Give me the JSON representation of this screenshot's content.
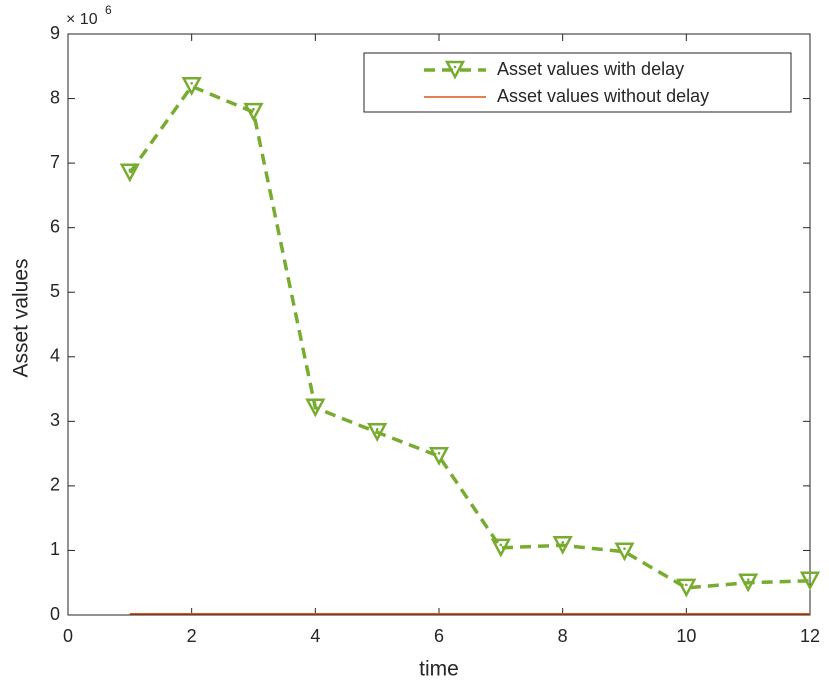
{
  "chart_data": {
    "type": "line",
    "x_label": "time",
    "y_label": "Asset values",
    "y_multiplier": {
      "base": "× 10",
      "exponent": "6"
    },
    "x": [
      1,
      2,
      3,
      4,
      5,
      6,
      7,
      8,
      9,
      10,
      11,
      12
    ],
    "series": [
      {
        "name": "Asset values with delay",
        "color": "#77ac30",
        "style": "dashed",
        "marker": "down-triangle",
        "values": [
          6.85,
          8.19,
          7.79,
          3.21,
          2.83,
          2.46,
          1.04,
          1.08,
          0.98,
          0.42,
          0.5,
          0.53
        ]
      },
      {
        "name": "Asset values without delay",
        "color": "#d95319",
        "style": "solid",
        "marker": "none",
        "values": [
          0.02,
          0.02,
          0.02,
          0.02,
          0.02,
          0.02,
          0.02,
          0.02,
          0.02,
          0.02,
          0.02,
          0.02
        ]
      }
    ],
    "xlim": [
      0,
      12
    ],
    "xticks": [
      0,
      2,
      4,
      6,
      8,
      10,
      12
    ],
    "ylim": [
      0,
      9
    ],
    "yticks": [
      0,
      1,
      2,
      3,
      4,
      5,
      6,
      7,
      8,
      9
    ],
    "grid": false,
    "legend": "upper right"
  }
}
